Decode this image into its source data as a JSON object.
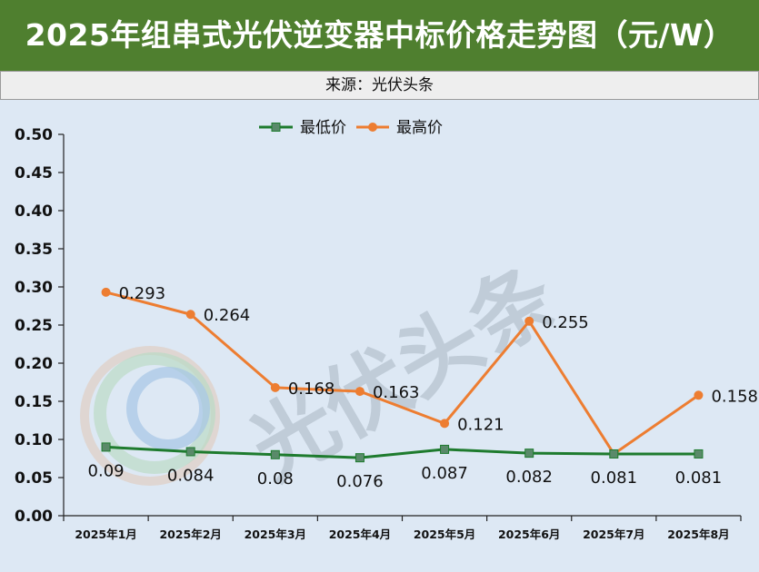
{
  "header": {
    "title": "2025年组串式光伏逆变器中标价格走势图（元/W）"
  },
  "source": "来源：光伏头条",
  "watermark": "光伏头条",
  "chart_data": {
    "type": "line",
    "title": "2025年组串式光伏逆变器中标价格走势图（元/W）",
    "categories": [
      "2025年1月",
      "2025年2月",
      "2025年3月",
      "2025年4月",
      "2025年5月",
      "2025年6月",
      "2025年7月",
      "2025年8月"
    ],
    "series": [
      {
        "name": "最低价",
        "values": [
          0.09,
          0.084,
          0.08,
          0.076,
          0.087,
          0.082,
          0.081,
          0.081
        ],
        "color": "#1e7b2e",
        "marker": "square",
        "marker_color": "#5a8a6a"
      },
      {
        "name": "最高价",
        "values": [
          0.293,
          0.264,
          0.168,
          0.163,
          0.121,
          0.255,
          0.081,
          0.158
        ],
        "color": "#ed7d31",
        "marker": "circle"
      }
    ],
    "data_labels": {
      "最低价": [
        "0.09",
        "0.084",
        "0.08",
        "0.076",
        "0.087",
        "0.082",
        "0.081",
        "0.081"
      ],
      "最高价": [
        "0.293",
        "0.264",
        "0.168",
        "0.163",
        "0.121",
        "0.255",
        "",
        "0.158"
      ]
    },
    "yticks": [
      "0.00",
      "0.05",
      "0.10",
      "0.15",
      "0.20",
      "0.25",
      "0.30",
      "0.35",
      "0.40",
      "0.45",
      "0.50"
    ],
    "ylim": [
      0,
      0.5
    ],
    "xlabel": "",
    "ylabel": "",
    "legend": "top-center",
    "grid": false,
    "background": "#dde8f4"
  }
}
